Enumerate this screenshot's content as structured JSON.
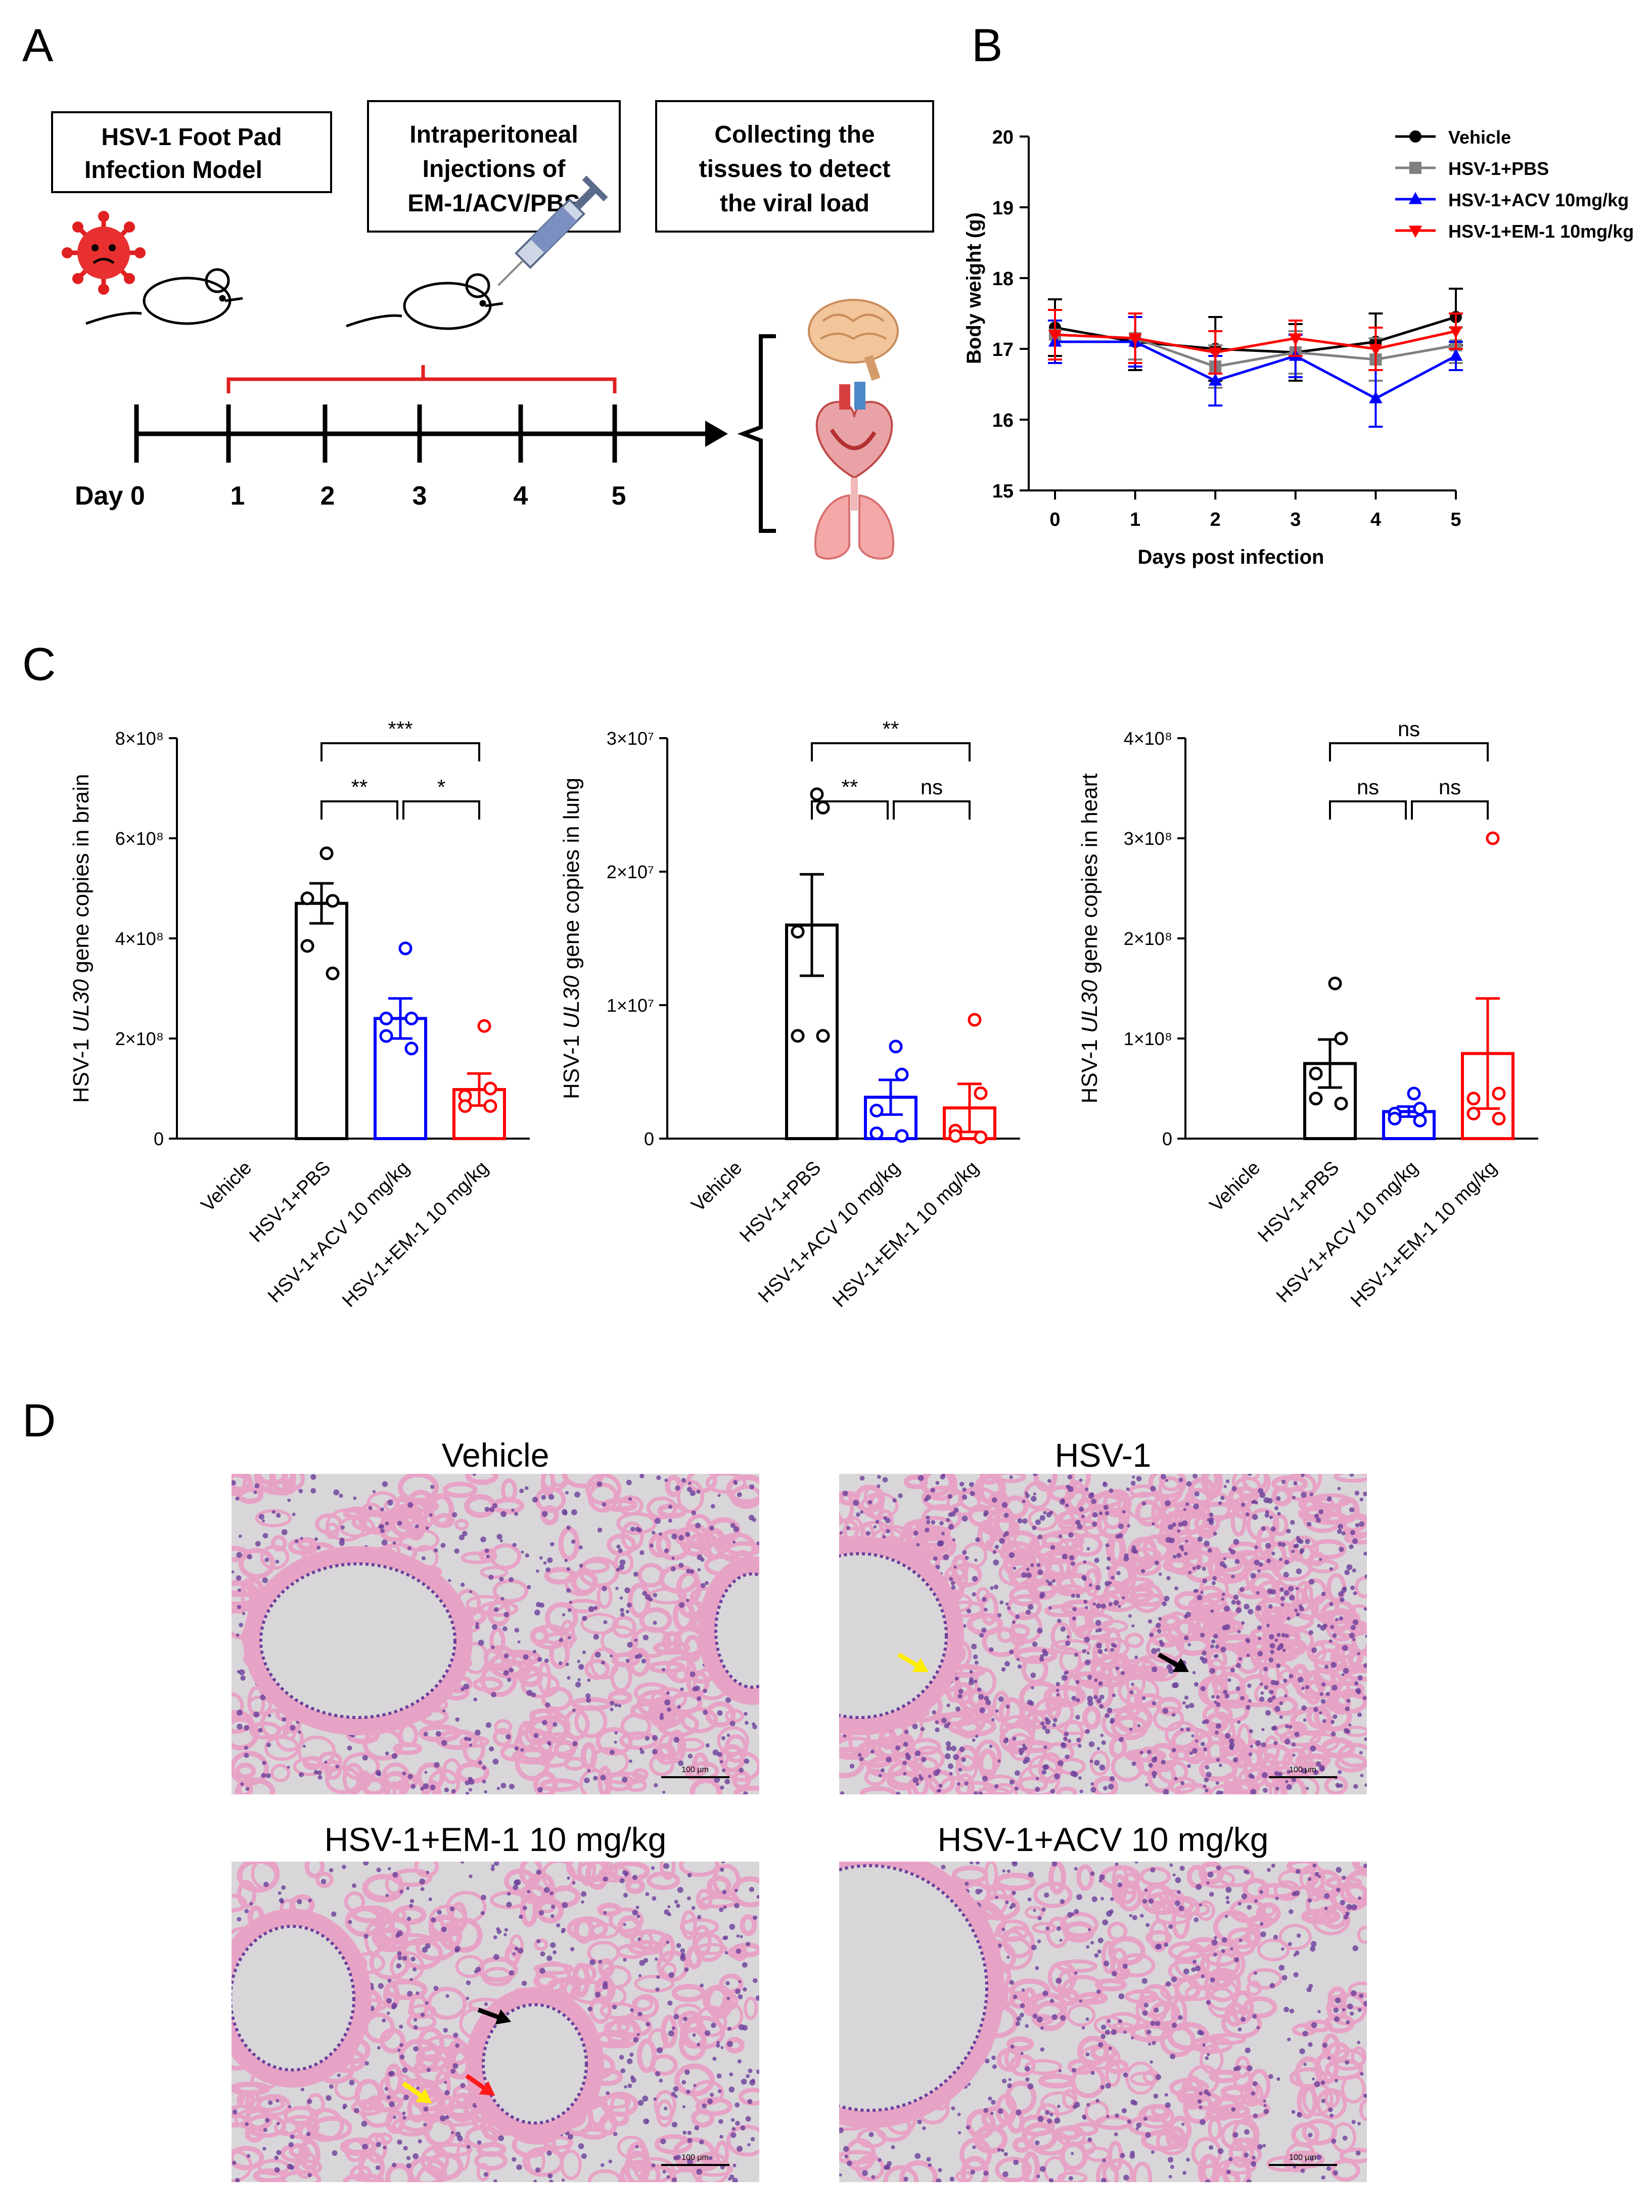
{
  "panels": {
    "a": {
      "letter": "A",
      "boxes": {
        "model": [
          "HSV-1  Foot Pad",
          "Infection Model"
        ],
        "injection": [
          "Intraperitoneal",
          "Injections of",
          "EM-1/ACV/PBS"
        ],
        "collect": [
          "Collecting the",
          "tissues to detect",
          "the viral load"
        ]
      },
      "timeline": {
        "day_label": "Day 0",
        "days": [
          "1",
          "2",
          "3",
          "4",
          "5"
        ]
      }
    },
    "b": {
      "letter": "B"
    },
    "c": {
      "letter": "C"
    },
    "d": {
      "letter": "D",
      "titles": [
        "Vehicle",
        "HSV-1",
        "HSV-1+EM-1 10 mg/kg",
        "HSV-1+ACV 10 mg/kg"
      ],
      "scale_label": "100 μm"
    }
  },
  "colors": {
    "vehicle": "#000000",
    "pbs": "#808080",
    "acv": "#0000ff",
    "em1": "#ff0000",
    "timeline_bracket": "#e02020",
    "tissue_bg": "#d9d6da",
    "tissue_pink": "#e7a3c6",
    "tissue_nuclei": "#6b3f9a",
    "arrow_yellow": "#ffee00",
    "arrow_red": "#ff1a1a",
    "arrow_black": "#000000"
  },
  "chart_data": [
    {
      "type": "line",
      "xlabel": "Days post infection",
      "ylabel": "Body weight (g)",
      "x": [
        0,
        1,
        2,
        3,
        4,
        5
      ],
      "xticks": [
        "0",
        "1",
        "2",
        "3",
        "4",
        "5"
      ],
      "ylim": [
        15,
        20
      ],
      "yticks": [
        "15",
        "16",
        "17",
        "18",
        "19",
        "20"
      ],
      "legend_placement": "top-right",
      "series": [
        {
          "name": "Vehicle",
          "color": "#000000",
          "marker": "circle",
          "values": [
            17.3,
            17.1,
            17.0,
            16.95,
            17.1,
            17.45
          ],
          "errors": [
            0.4,
            0.4,
            0.45,
            0.4,
            0.4,
            0.4
          ]
        },
        {
          "name": "HSV-1+PBS",
          "color": "#808080",
          "marker": "square",
          "values": [
            17.2,
            17.15,
            16.75,
            16.95,
            16.85,
            17.05
          ],
          "errors": [
            0.35,
            0.3,
            0.3,
            0.3,
            0.3,
            0.25
          ]
        },
        {
          "name": "HSV-1+ACV 10mg/kg",
          "color": "#0000ff",
          "marker": "triangle-up",
          "values": [
            17.1,
            17.1,
            16.55,
            16.9,
            16.3,
            16.9
          ],
          "errors": [
            0.3,
            0.35,
            0.35,
            0.3,
            0.4,
            0.2
          ]
        },
        {
          "name": "HSV-1+EM-1 10mg/kg",
          "color": "#ff0000",
          "marker": "triangle-down",
          "values": [
            17.2,
            17.15,
            16.95,
            17.15,
            17.0,
            17.25
          ],
          "errors": [
            0.35,
            0.35,
            0.3,
            0.25,
            0.3,
            0.25
          ]
        }
      ]
    },
    {
      "type": "bar",
      "ylabel_parts": [
        "HSV-1 ",
        "UL30",
        " gene copies in brain"
      ],
      "categories": [
        "Vehicle",
        "HSV-1+PBS",
        "HSV-1+ACV 10 mg/kg",
        "HSV-1+EM-1 10 mg/kg"
      ],
      "ylim": [
        0,
        800000000
      ],
      "yticks": [
        0,
        200000000,
        400000000,
        600000000,
        800000000
      ],
      "ytick_labels": [
        "0",
        "2×10⁸",
        "4×10⁸",
        "6×10⁸",
        "8×10⁸"
      ],
      "colors": [
        "#000000",
        "#000000",
        "#0000ff",
        "#ff0000"
      ],
      "means": [
        0,
        470000000,
        240000000,
        98000000
      ],
      "sem": [
        0,
        40000000,
        40000000,
        32000000
      ],
      "points": [
        [],
        [
          570000000,
          475000000,
          480000000,
          385000000,
          330000000
        ],
        [
          380000000,
          240000000,
          240000000,
          205000000,
          180000000
        ],
        [
          225000000,
          100000000,
          85000000,
          65000000,
          65000000
        ]
      ],
      "significance": [
        {
          "from": 1,
          "to": 3,
          "label": "***"
        },
        {
          "from": 1,
          "to": 2,
          "label": "**"
        },
        {
          "from": 2,
          "to": 3,
          "label": "*"
        }
      ]
    },
    {
      "type": "bar",
      "ylabel_parts": [
        "HSV-1 ",
        "UL30",
        " gene copies in lung"
      ],
      "categories": [
        "Vehicle",
        "HSV-1+PBS",
        "HSV-1+ACV 10 mg/kg",
        "HSV-1+EM-1 10 mg/kg"
      ],
      "ylim": [
        0,
        30000000
      ],
      "yticks": [
        0,
        10000000,
        20000000,
        30000000
      ],
      "ytick_labels": [
        "0",
        "1×10⁷",
        "2×10⁷",
        "3×10⁷"
      ],
      "colors": [
        "#000000",
        "#000000",
        "#0000ff",
        "#ff0000"
      ],
      "means": [
        0,
        16000000,
        3100000,
        2300000
      ],
      "sem": [
        0,
        3800000,
        1300000,
        1800000
      ],
      "points": [
        [],
        [
          25800000,
          24800000,
          15500000,
          7700000,
          7700000
        ],
        [
          6900000,
          4800000,
          2100000,
          400000,
          200000
        ],
        [
          8900000,
          3400000,
          600000,
          200000,
          100000
        ]
      ],
      "significance": [
        {
          "from": 1,
          "to": 3,
          "label": "**"
        },
        {
          "from": 1,
          "to": 2,
          "label": "**"
        },
        {
          "from": 2,
          "to": 3,
          "label": "ns"
        }
      ]
    },
    {
      "type": "bar",
      "ylabel_parts": [
        "HSV-1 ",
        "UL30",
        " gene copies in heart"
      ],
      "categories": [
        "Vehicle",
        "HSV-1+PBS",
        "HSV-1+ACV 10 mg/kg",
        "HSV-1+EM-1 10 mg/kg"
      ],
      "ylim": [
        0,
        400000000
      ],
      "yticks": [
        0,
        100000000,
        200000000,
        300000000,
        400000000
      ],
      "ytick_labels": [
        "0",
        "1×10⁸",
        "2×10⁸",
        "3×10⁸",
        "4×10⁸"
      ],
      "colors": [
        "#000000",
        "#000000",
        "#0000ff",
        "#ff0000"
      ],
      "means": [
        0,
        75000000,
        27000000,
        85000000
      ],
      "sem": [
        0,
        24000000,
        5000000,
        55000000
      ],
      "points": [
        [],
        [
          155000000,
          100000000,
          65000000,
          40000000,
          35000000
        ],
        [
          45000000,
          30000000,
          25000000,
          20000000,
          18000000
        ],
        [
          300000000,
          45000000,
          40000000,
          25000000,
          20000000
        ]
      ],
      "significance": [
        {
          "from": 1,
          "to": 3,
          "label": "ns"
        },
        {
          "from": 1,
          "to": 2,
          "label": "ns"
        },
        {
          "from": 2,
          "to": 3,
          "label": "ns"
        }
      ]
    }
  ]
}
